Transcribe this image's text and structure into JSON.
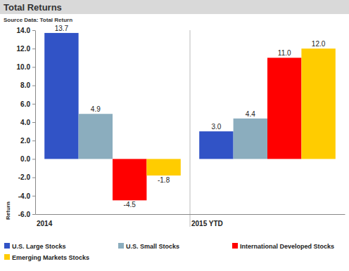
{
  "chart_data": {
    "type": "bar",
    "title": "Total Returns",
    "subtitle": "Source Data: Total Return",
    "y_label": "Return",
    "categories": [
      "2014",
      "2015 YTD"
    ],
    "series": [
      {
        "name": "U.S. Large Stocks",
        "color": "#3153C6",
        "values": [
          13.7,
          3.0
        ],
        "value_labels": [
          "13.7",
          "3.0"
        ]
      },
      {
        "name": "U.S. Small Stocks",
        "color": "#8BADBE",
        "values": [
          4.9,
          4.4
        ],
        "value_labels": [
          "4.9",
          "4.4"
        ]
      },
      {
        "name": "International Developed Stocks",
        "color": "#FF0000",
        "values": [
          -4.5,
          11.0
        ],
        "value_labels": [
          "-4.5",
          "11.0"
        ]
      },
      {
        "name": "Emerging Markets Stocks",
        "color": "#FFCC00",
        "values": [
          -1.8,
          12.0
        ],
        "value_labels": [
          "-1.8",
          "12.0"
        ]
      }
    ],
    "ylim": [
      -6,
      14
    ],
    "yticks": [
      {
        "value": -6,
        "label": "-6.0"
      },
      {
        "value": -4,
        "label": "-4.0"
      },
      {
        "value": -2,
        "label": "-2.0"
      },
      {
        "value": 0,
        "label": "0.0"
      },
      {
        "value": 2,
        "label": "2.0"
      },
      {
        "value": 4,
        "label": "4.0"
      },
      {
        "value": 6,
        "label": "6.0"
      },
      {
        "value": 8,
        "label": "8.0"
      },
      {
        "value": 10,
        "label": "10.0"
      },
      {
        "value": 12,
        "label": "12.0"
      },
      {
        "value": 14,
        "label": "14.0"
      }
    ],
    "grid": false,
    "legend": "bottom",
    "data_labels": true
  }
}
